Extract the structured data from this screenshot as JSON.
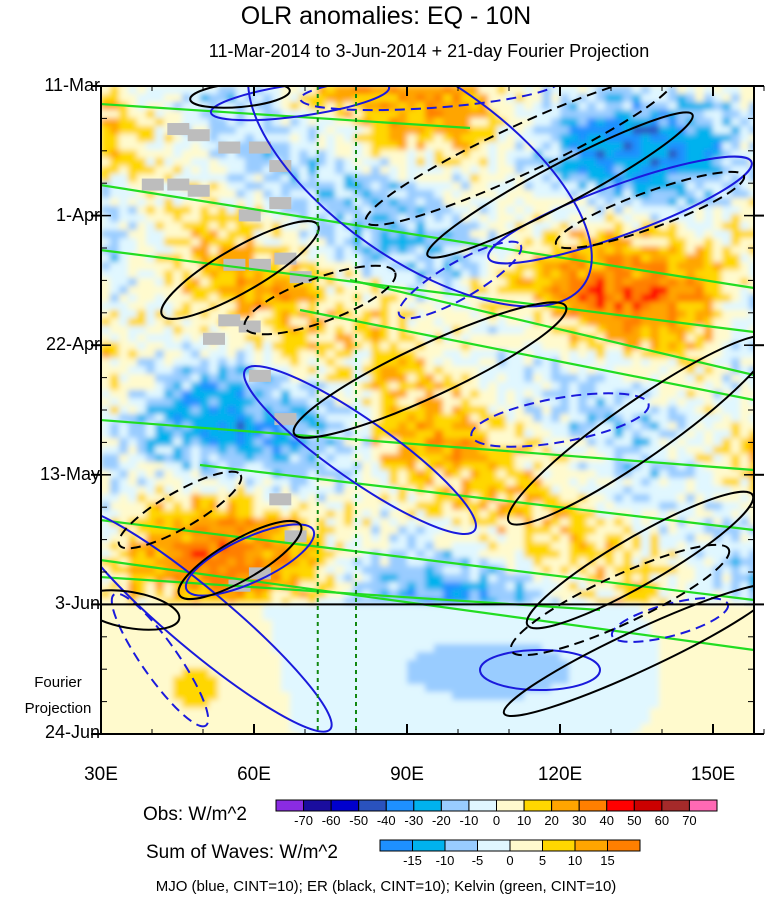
{
  "chart_data": {
    "type": "heatmap",
    "title": "OLR anomalies: EQ - 10N",
    "subtitle": "11-Mar-2014 to 3-Jun-2014 + 21-day Fourier Projection",
    "xlabel": "",
    "ylabel": "",
    "x_ticks": [
      {
        "value": 30,
        "label": "30E"
      },
      {
        "value": 60,
        "label": "60E"
      },
      {
        "value": 90,
        "label": "90E"
      },
      {
        "value": 120,
        "label": "120E"
      },
      {
        "value": 150,
        "label": "150E"
      }
    ],
    "xlim": [
      30,
      160
    ],
    "y_ticks": [
      {
        "value": 0,
        "label": "11-Mar"
      },
      {
        "value": 21,
        "label": "1-Apr"
      },
      {
        "value": 42,
        "label": "22-Apr"
      },
      {
        "value": 63,
        "label": "13-May"
      },
      {
        "value": 84,
        "label": "3-Jun"
      },
      {
        "value": 105,
        "label": "24-Jun"
      }
    ],
    "ylim_days": [
      0,
      105
    ],
    "fourier_start_day": 84,
    "fourier_label": [
      "Fourier",
      "Projection"
    ],
    "reference_longitudes": [
      72.5,
      80
    ],
    "obs_colorbar": {
      "label": "Obs: W/m^2",
      "levels": [
        -70,
        -60,
        -50,
        -40,
        -30,
        -20,
        -10,
        0,
        10,
        20,
        30,
        40,
        50,
        60,
        70
      ],
      "colors": [
        "#8a2be2",
        "#1a0d9e",
        "#0000cd",
        "#2a52be",
        "#1e90ff",
        "#00b2ee",
        "#99ccff",
        "#e0f7ff",
        "#fffacd",
        "#ffd700",
        "#ffa500",
        "#ff7f00",
        "#ff0000",
        "#cc0000",
        "#a52a2a",
        "#ff69b4"
      ]
    },
    "waves_colorbar": {
      "label": "Sum of Waves: W/m^2",
      "levels": [
        -15,
        -10,
        -5,
        0,
        5,
        10,
        15
      ],
      "colors": [
        "#1e90ff",
        "#00b2ee",
        "#99ccff",
        "#e0f7ff",
        "#fffacd",
        "#ffd700",
        "#ffa500",
        "#ff7f00"
      ]
    },
    "contours": [
      {
        "name": "MJO",
        "color": "#1a1adc",
        "cint": 10
      },
      {
        "name": "ER",
        "color": "#000000",
        "cint": 10
      },
      {
        "name": "Kelvin",
        "color": "#22dd22",
        "cint": 10
      }
    ],
    "footer": "MJO (blue, CINT=10); ER (black, CINT=10); Kelvin (green, CINT=10)"
  }
}
